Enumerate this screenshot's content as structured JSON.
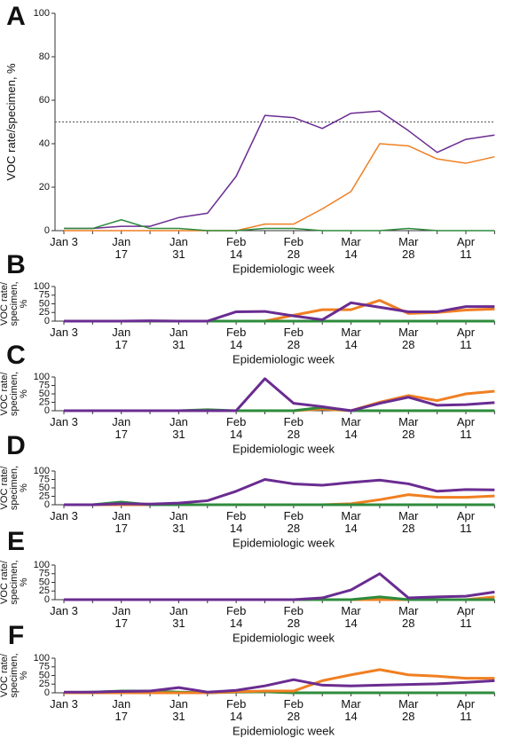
{
  "chart_data": [
    {
      "type": "line",
      "panel": "A",
      "y_label": [
        "VOC rate/specimen, %"
      ],
      "x_label": "Epidemiologic week",
      "categories": [
        "Jan 3",
        null,
        "Jan 17",
        null,
        "Jan 31",
        null,
        "Feb 14",
        null,
        "Feb 28",
        null,
        "Mar 14",
        null,
        "Mar 28",
        null,
        "Apr 11",
        null
      ],
      "ylim": [
        0,
        100
      ],
      "yticks": [
        0,
        20,
        40,
        60,
        80,
        100
      ],
      "reference_line": 50,
      "series": [
        {
          "color": "#6a2c91",
          "values": [
            1,
            1,
            2,
            2,
            6,
            8,
            25,
            53,
            52,
            47,
            54,
            55,
            46,
            36,
            42,
            44
          ]
        },
        {
          "color": "#f07f22",
          "values": [
            0,
            0,
            0,
            0,
            0,
            0,
            0,
            3,
            3,
            10,
            18,
            40,
            39,
            33,
            31,
            34
          ]
        },
        {
          "color": "#2e8b3c",
          "values": [
            1,
            1,
            5,
            1,
            1,
            0,
            0,
            1,
            1,
            0,
            0,
            0,
            1,
            0,
            0,
            0
          ]
        }
      ]
    },
    {
      "type": "line",
      "panel": "B",
      "y_label": [
        "VOC rate/",
        "specimen,",
        "%"
      ],
      "x_label": "Epidemiologic week",
      "categories": [
        "Jan 3",
        null,
        "Jan 17",
        null,
        "Jan 31",
        null,
        "Feb 14",
        null,
        "Feb 28",
        null,
        "Mar 14",
        null,
        "Mar 28",
        null,
        "Apr 11",
        null
      ],
      "ylim": [
        0,
        100
      ],
      "yticks": [
        0,
        25,
        50,
        75,
        100
      ],
      "series": [
        {
          "color": "#f07f22",
          "values": [
            0,
            0,
            0,
            0,
            0,
            0,
            0,
            0,
            17,
            33,
            33,
            60,
            22,
            25,
            32,
            35
          ]
        },
        {
          "color": "#2e8b3c",
          "values": [
            0,
            0,
            0,
            0,
            0,
            0,
            0,
            0,
            0,
            0,
            0,
            0,
            0,
            0,
            0,
            0
          ]
        },
        {
          "color": "#6a2c91",
          "values": [
            0,
            0,
            0,
            1,
            0,
            0,
            27,
            28,
            15,
            4,
            53,
            40,
            27,
            27,
            42,
            42
          ]
        }
      ]
    },
    {
      "type": "line",
      "panel": "C",
      "y_label": [
        "VOC rate/",
        "specimen,",
        "%"
      ],
      "x_label": "Epidemiologic week",
      "categories": [
        "Jan 3",
        null,
        "Jan 17",
        null,
        "Jan 31",
        null,
        "Feb 14",
        null,
        "Feb 28",
        null,
        "Mar 14",
        null,
        "Mar 28",
        null,
        "Apr 11",
        null
      ],
      "ylim": [
        0,
        100
      ],
      "yticks": [
        0,
        25,
        50,
        75,
        100
      ],
      "series": [
        {
          "color": "#f07f22",
          "values": [
            0,
            0,
            0,
            0,
            0,
            0,
            0,
            0,
            0,
            5,
            0,
            25,
            45,
            30,
            50,
            58
          ]
        },
        {
          "color": "#2e8b3c",
          "values": [
            0,
            0,
            0,
            0,
            0,
            3,
            0,
            0,
            0,
            10,
            0,
            0,
            0,
            0,
            0,
            0
          ]
        },
        {
          "color": "#6a2c91",
          "values": [
            0,
            0,
            0,
            0,
            0,
            0,
            0,
            95,
            22,
            12,
            0,
            22,
            40,
            16,
            18,
            24
          ]
        }
      ]
    },
    {
      "type": "line",
      "panel": "D",
      "y_label": [
        "VOC rate/",
        "specimen,",
        "%"
      ],
      "x_label": "Epidemiologic week",
      "categories": [
        "Jan 3",
        null,
        "Jan 17",
        null,
        "Jan 31",
        null,
        "Feb 14",
        null,
        "Feb 28",
        null,
        "Mar 14",
        null,
        "Mar 28",
        null,
        "Apr 11",
        null
      ],
      "ylim": [
        0,
        100
      ],
      "yticks": [
        0,
        25,
        50,
        75,
        100
      ],
      "series": [
        {
          "color": "#f07f22",
          "values": [
            0,
            0,
            0,
            0,
            0,
            0,
            0,
            0,
            0,
            0,
            3,
            15,
            30,
            22,
            22,
            26
          ]
        },
        {
          "color": "#2e8b3c",
          "values": [
            0,
            0,
            8,
            0,
            0,
            0,
            0,
            0,
            0,
            0,
            0,
            0,
            0,
            0,
            0,
            0
          ]
        },
        {
          "color": "#6a2c91",
          "values": [
            0,
            0,
            3,
            2,
            5,
            12,
            40,
            75,
            62,
            58,
            66,
            73,
            62,
            40,
            45,
            44
          ]
        }
      ]
    },
    {
      "type": "line",
      "panel": "E",
      "y_label": [
        "VOC rate/",
        "specimen,",
        "%"
      ],
      "x_label": "Epidemiologic week",
      "categories": [
        "Jan 3",
        null,
        "Jan 17",
        null,
        "Jan 31",
        null,
        "Feb 14",
        null,
        "Feb 28",
        null,
        "Mar 14",
        null,
        "Mar 28",
        null,
        "Apr 11",
        null
      ],
      "ylim": [
        0,
        100
      ],
      "yticks": [
        0,
        25,
        50,
        75,
        100
      ],
      "series": [
        {
          "color": "#f07f22",
          "values": [
            0,
            0,
            0,
            0,
            0,
            0,
            0,
            0,
            0,
            0,
            0,
            0,
            0,
            0,
            0,
            8
          ]
        },
        {
          "color": "#2e8b3c",
          "values": [
            0,
            0,
            0,
            0,
            0,
            0,
            0,
            0,
            0,
            0,
            0,
            8,
            0,
            0,
            0,
            0
          ]
        },
        {
          "color": "#6a2c91",
          "values": [
            0,
            0,
            0,
            0,
            0,
            0,
            0,
            0,
            0,
            5,
            28,
            75,
            5,
            8,
            10,
            22
          ]
        }
      ]
    },
    {
      "type": "line",
      "panel": "F",
      "y_label": [
        "VOC rate/",
        "specimen,",
        "%"
      ],
      "x_label": "Epidemiologic week",
      "categories": [
        "Jan 3",
        null,
        "Jan 17",
        null,
        "Jan 31",
        null,
        "Feb 14",
        null,
        "Feb 28",
        null,
        "Mar 14",
        null,
        "Mar 28",
        null,
        "Apr 11",
        null
      ],
      "ylim": [
        0,
        100
      ],
      "yticks": [
        0,
        25,
        50,
        75,
        100
      ],
      "series": [
        {
          "color": "#2e8b3c",
          "values": [
            0,
            2,
            5,
            5,
            2,
            0,
            2,
            3,
            0,
            0,
            0,
            0,
            0,
            0,
            0,
            0
          ]
        },
        {
          "color": "#f07f22",
          "values": [
            0,
            0,
            0,
            0,
            0,
            0,
            3,
            5,
            5,
            35,
            52,
            67,
            52,
            48,
            42,
            42
          ]
        },
        {
          "color": "#6a2c91",
          "values": [
            2,
            2,
            4,
            5,
            15,
            2,
            7,
            20,
            38,
            22,
            20,
            22,
            24,
            26,
            30,
            35
          ]
        }
      ]
    }
  ]
}
